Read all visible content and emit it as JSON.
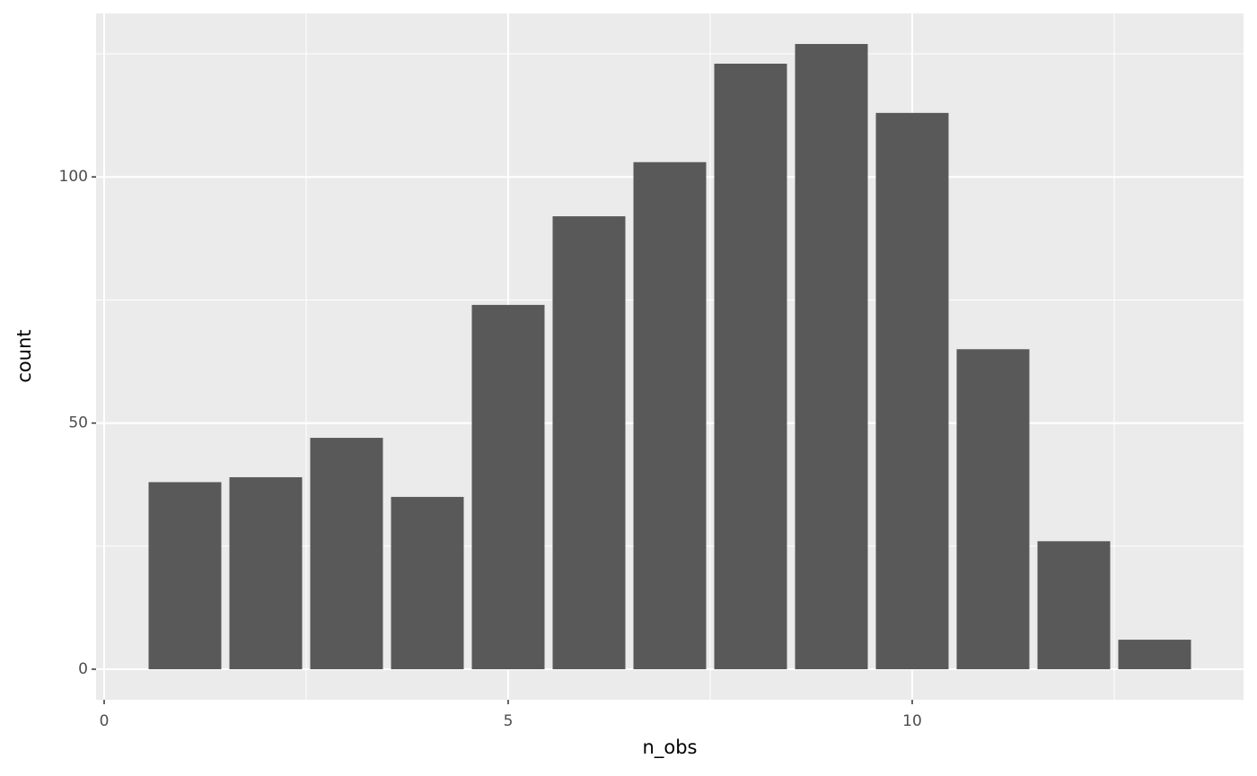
{
  "chart_data": {
    "type": "bar",
    "x_label": "n_obs",
    "y_label": "count",
    "x": [
      1,
      2,
      3,
      4,
      5,
      6,
      7,
      8,
      9,
      10,
      11,
      12,
      13
    ],
    "values": [
      38,
      39,
      47,
      35,
      74,
      92,
      103,
      123,
      127,
      113,
      65,
      26,
      6
    ],
    "color": "#595959",
    "xlim": [
      -0.1,
      14.1
    ],
    "xticks": [
      0,
      5,
      10
    ],
    "minor_xticks": [
      2.5,
      7.5,
      12.5
    ],
    "ylim": [
      -6.2,
      133.2
    ],
    "yticks": [
      0,
      50,
      100
    ],
    "minor_yticks": [
      25,
      75,
      125
    ],
    "grid": true
  }
}
